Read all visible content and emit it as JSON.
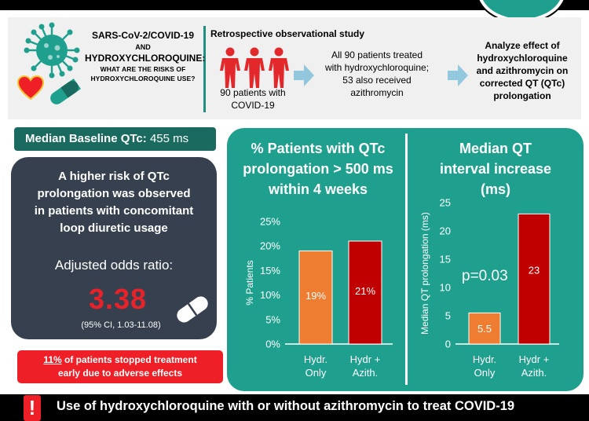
{
  "question": {
    "line1": "SARS-CoV-2/COVID-19",
    "line2": "AND",
    "line3": "HYDROXYCHLOROQUINE:",
    "line4a": "WHAT ARE THE RISKS OF",
    "line4b": "HYDROXYCHLOROQUINE USE?"
  },
  "study": {
    "label": "Retrospective observational study",
    "patients_line1": "90 patients with",
    "patients_line2": "COVID-19",
    "treated_line1": "All 90 patients treated",
    "treated_line2": "with hydroxychloroquine;",
    "treated_line3": "53 also received",
    "treated_line4": "azithromycin",
    "analyze_line1": "Analyze effect of",
    "analyze_line2": "hydroxychloroquine",
    "analyze_line3": "and azithromycin on",
    "analyze_line4": "corrected QT (QTc)",
    "analyze_line5": "prolongation"
  },
  "baseline": {
    "label": "Median Baseline QTc:",
    "value": "455 ms"
  },
  "risk": {
    "line1": "A higher risk of QTc",
    "line2": "prolongation was observed",
    "line3": "in patients with concomitant",
    "line4": "loop diuretic usage",
    "odds_label": "Adjusted odds ratio:",
    "odds_value": "3.38",
    "ci": "(95% CI, 1.03-11.08)"
  },
  "stopped": {
    "percent": "11%",
    "rest_line1": " of patients stopped treatment",
    "line2": "early due to adverse effects"
  },
  "chart1_title": {
    "line1": "% Patients with QTc",
    "line2": "prolongation > 500 ms",
    "line3": "within 4 weeks"
  },
  "chart2_title": {
    "line1": "Median QT",
    "line2": "interval increase",
    "line3": "(ms)"
  },
  "footer": {
    "warn_glyph": "!",
    "text": "Use of hydroxychloroquine with or without azithromycin to treat COVID-19"
  },
  "colors": {
    "teal": "#1fa08e",
    "dark_teal": "#1a6a60",
    "slate": "#36404e",
    "red": "#ee1f26",
    "orange": "#ee7d31",
    "dark_red": "#c00000",
    "person_red": "#e3282b"
  },
  "icons": [
    "virus-icon",
    "heart-icon",
    "capsule-icon",
    "person-icon",
    "arrow-right-icon",
    "exclamation-icon"
  ],
  "chart_data": [
    {
      "type": "bar",
      "title": "% Patients with QTc prolongation > 500 ms within 4 weeks",
      "ylabel": "% Patients",
      "categories": [
        [
          "Hydr.",
          "Only"
        ],
        [
          "Hydr +",
          "Azith."
        ]
      ],
      "values": [
        19,
        21
      ],
      "value_labels": [
        "19%",
        "21%"
      ],
      "ylim": [
        0,
        25
      ],
      "yticks": [
        "0%",
        "5%",
        "10%",
        "15%",
        "20%",
        "25%"
      ],
      "bar_colors": [
        "#ee7d31",
        "#c00000"
      ]
    },
    {
      "type": "bar",
      "title": "Median QT interval increase (ms)",
      "ylabel": "Median QT prolongation (ms)",
      "categories": [
        [
          "Hydr.",
          "Only"
        ],
        [
          "Hydr +",
          "Azith."
        ]
      ],
      "values": [
        5.5,
        23
      ],
      "value_labels": [
        "5.5",
        "23"
      ],
      "ylim": [
        0,
        25
      ],
      "yticks": [
        "0",
        "5",
        "10",
        "15",
        "20",
        "25"
      ],
      "annotation": "p=0.03",
      "bar_colors": [
        "#ee7d31",
        "#c00000"
      ]
    }
  ]
}
